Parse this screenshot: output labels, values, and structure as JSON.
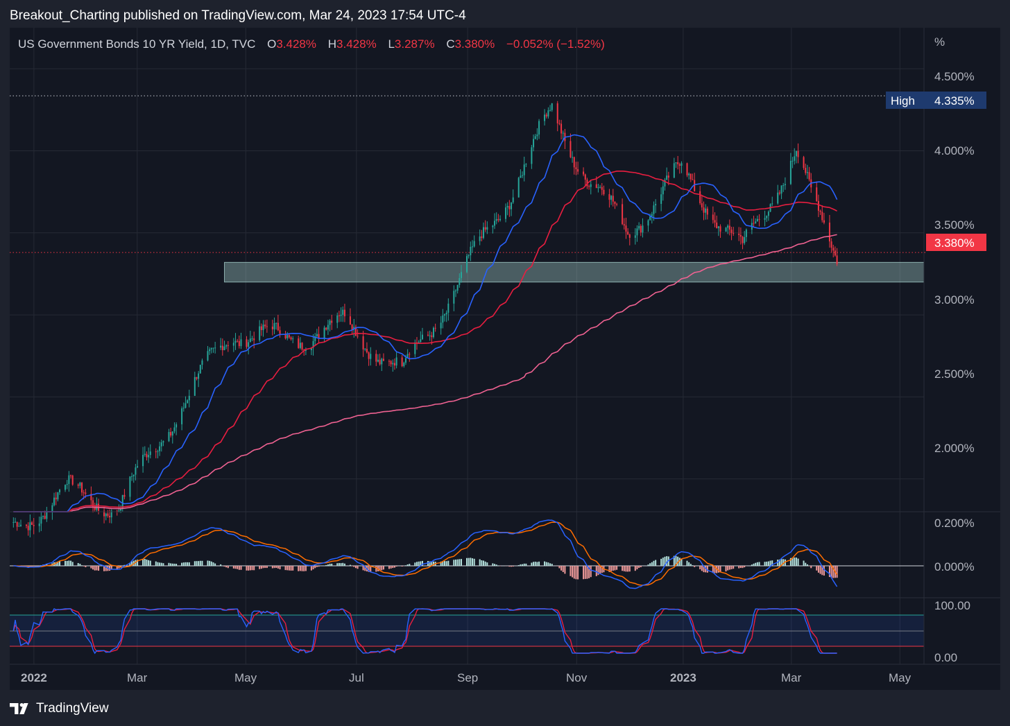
{
  "header": {
    "publisher": "Breakout_Charting published on TradingView.com, Mar 24, 2023 17:54 UTC-4"
  },
  "legend": {
    "symbol": "US Government Bonds 10 YR Yield, 1D, TVC",
    "o_label": "O",
    "o_value": "3.428%",
    "h_label": "H",
    "h_value": "3.428%",
    "l_label": "L",
    "l_value": "3.287%",
    "c_label": "C",
    "c_value": "3.380%",
    "change": "−0.052% (−1.52%)"
  },
  "axis": {
    "unit": "%",
    "high_label": "High",
    "high_value": "4.335%",
    "last_value": "3.380%",
    "price_ticks": [
      "4.500%",
      "4.000%",
      "3.500%",
      "3.000%",
      "2.500%",
      "2.000%"
    ],
    "macd_ticks": [
      "0.200%",
      "0.000%"
    ],
    "stoch_ticks": [
      "100.00",
      "0.00"
    ]
  },
  "xaxis": {
    "labels": [
      {
        "text": "2022",
        "bold": true
      },
      {
        "text": "Mar",
        "bold": false
      },
      {
        "text": "May",
        "bold": false
      },
      {
        "text": "Jul",
        "bold": false
      },
      {
        "text": "Sep",
        "bold": false
      },
      {
        "text": "Nov",
        "bold": false
      },
      {
        "text": "2023",
        "bold": true
      },
      {
        "text": "Mar",
        "bold": false
      },
      {
        "text": "May",
        "bold": false
      }
    ]
  },
  "footer": {
    "brand": "TradingView"
  },
  "colors": {
    "background": "#131722",
    "frame": "#1e222d",
    "up": "#26a69a",
    "down": "#f23645",
    "ma_fast": "#2962ff",
    "ma_mid": "#e91e40",
    "ma_slow": "#f06292",
    "macd": "#2962ff",
    "signal": "#ff6d00",
    "stoch_k": "#2962ff",
    "stoch_d": "#e91e40"
  },
  "chart_data": {
    "type": "candlestick",
    "title": "US Government Bonds 10 YR Yield, 1D, TVC",
    "ylim": [
      1.8,
      4.75
    ],
    "support_zone": [
      3.2,
      3.32
    ],
    "high_marker": 4.335,
    "last_price": 3.38,
    "x_range": [
      "2022-01-01",
      "2023-05-10"
    ],
    "months": [
      {
        "date": "2022-01-01",
        "value": 1.68
      },
      {
        "date": "2022-02-01",
        "value": 1.93
      },
      {
        "date": "2022-03-01",
        "value": 1.83
      },
      {
        "date": "2022-04-01",
        "value": 2.4
      },
      {
        "date": "2022-05-01",
        "value": 2.9
      },
      {
        "date": "2022-06-01",
        "value": 2.85
      },
      {
        "date": "2022-07-01",
        "value": 2.95
      },
      {
        "date": "2022-08-01",
        "value": 2.65
      },
      {
        "date": "2022-09-01",
        "value": 3.2
      },
      {
        "date": "2022-10-01",
        "value": 3.8
      },
      {
        "date": "2022-10-21",
        "value": 4.24
      },
      {
        "date": "2022-11-10",
        "value": 3.82
      },
      {
        "date": "2022-12-01",
        "value": 3.51
      },
      {
        "date": "2022-12-30",
        "value": 3.88
      },
      {
        "date": "2023-02-01",
        "value": 3.39
      },
      {
        "date": "2023-03-02",
        "value": 4.0
      },
      {
        "date": "2023-03-10",
        "value": 3.7
      },
      {
        "date": "2023-03-24",
        "value": 3.38
      }
    ]
  }
}
